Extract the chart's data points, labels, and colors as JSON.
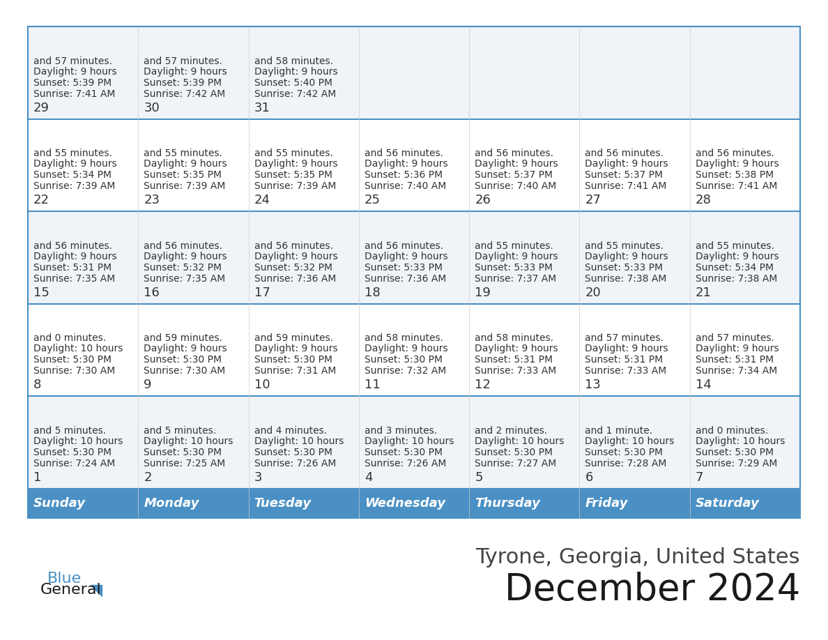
{
  "title": "December 2024",
  "subtitle": "Tyrone, Georgia, United States",
  "header_color": "#4a90c4",
  "header_text_color": "#ffffff",
  "border_color": "#4a90c4",
  "row_bg_even": "#f0f4f8",
  "row_bg_odd": "#ffffff",
  "days_of_week": [
    "Sunday",
    "Monday",
    "Tuesday",
    "Wednesday",
    "Thursday",
    "Friday",
    "Saturday"
  ],
  "weeks": [
    [
      {
        "day": 1,
        "sunrise": "7:24 AM",
        "sunset": "5:30 PM",
        "daylight": "10 hours\nand 5 minutes."
      },
      {
        "day": 2,
        "sunrise": "7:25 AM",
        "sunset": "5:30 PM",
        "daylight": "10 hours\nand 5 minutes."
      },
      {
        "day": 3,
        "sunrise": "7:26 AM",
        "sunset": "5:30 PM",
        "daylight": "10 hours\nand 4 minutes."
      },
      {
        "day": 4,
        "sunrise": "7:26 AM",
        "sunset": "5:30 PM",
        "daylight": "10 hours\nand 3 minutes."
      },
      {
        "day": 5,
        "sunrise": "7:27 AM",
        "sunset": "5:30 PM",
        "daylight": "10 hours\nand 2 minutes."
      },
      {
        "day": 6,
        "sunrise": "7:28 AM",
        "sunset": "5:30 PM",
        "daylight": "10 hours\nand 1 minute."
      },
      {
        "day": 7,
        "sunrise": "7:29 AM",
        "sunset": "5:30 PM",
        "daylight": "10 hours\nand 0 minutes."
      }
    ],
    [
      {
        "day": 8,
        "sunrise": "7:30 AM",
        "sunset": "5:30 PM",
        "daylight": "10 hours\nand 0 minutes."
      },
      {
        "day": 9,
        "sunrise": "7:30 AM",
        "sunset": "5:30 PM",
        "daylight": "9 hours\nand 59 minutes."
      },
      {
        "day": 10,
        "sunrise": "7:31 AM",
        "sunset": "5:30 PM",
        "daylight": "9 hours\nand 59 minutes."
      },
      {
        "day": 11,
        "sunrise": "7:32 AM",
        "sunset": "5:30 PM",
        "daylight": "9 hours\nand 58 minutes."
      },
      {
        "day": 12,
        "sunrise": "7:33 AM",
        "sunset": "5:31 PM",
        "daylight": "9 hours\nand 58 minutes."
      },
      {
        "day": 13,
        "sunrise": "7:33 AM",
        "sunset": "5:31 PM",
        "daylight": "9 hours\nand 57 minutes."
      },
      {
        "day": 14,
        "sunrise": "7:34 AM",
        "sunset": "5:31 PM",
        "daylight": "9 hours\nand 57 minutes."
      }
    ],
    [
      {
        "day": 15,
        "sunrise": "7:35 AM",
        "sunset": "5:31 PM",
        "daylight": "9 hours\nand 56 minutes."
      },
      {
        "day": 16,
        "sunrise": "7:35 AM",
        "sunset": "5:32 PM",
        "daylight": "9 hours\nand 56 minutes."
      },
      {
        "day": 17,
        "sunrise": "7:36 AM",
        "sunset": "5:32 PM",
        "daylight": "9 hours\nand 56 minutes."
      },
      {
        "day": 18,
        "sunrise": "7:36 AM",
        "sunset": "5:33 PM",
        "daylight": "9 hours\nand 56 minutes."
      },
      {
        "day": 19,
        "sunrise": "7:37 AM",
        "sunset": "5:33 PM",
        "daylight": "9 hours\nand 55 minutes."
      },
      {
        "day": 20,
        "sunrise": "7:38 AM",
        "sunset": "5:33 PM",
        "daylight": "9 hours\nand 55 minutes."
      },
      {
        "day": 21,
        "sunrise": "7:38 AM",
        "sunset": "5:34 PM",
        "daylight": "9 hours\nand 55 minutes."
      }
    ],
    [
      {
        "day": 22,
        "sunrise": "7:39 AM",
        "sunset": "5:34 PM",
        "daylight": "9 hours\nand 55 minutes."
      },
      {
        "day": 23,
        "sunrise": "7:39 AM",
        "sunset": "5:35 PM",
        "daylight": "9 hours\nand 55 minutes."
      },
      {
        "day": 24,
        "sunrise": "7:39 AM",
        "sunset": "5:35 PM",
        "daylight": "9 hours\nand 55 minutes."
      },
      {
        "day": 25,
        "sunrise": "7:40 AM",
        "sunset": "5:36 PM",
        "daylight": "9 hours\nand 56 minutes."
      },
      {
        "day": 26,
        "sunrise": "7:40 AM",
        "sunset": "5:37 PM",
        "daylight": "9 hours\nand 56 minutes."
      },
      {
        "day": 27,
        "sunrise": "7:41 AM",
        "sunset": "5:37 PM",
        "daylight": "9 hours\nand 56 minutes."
      },
      {
        "day": 28,
        "sunrise": "7:41 AM",
        "sunset": "5:38 PM",
        "daylight": "9 hours\nand 56 minutes."
      }
    ],
    [
      {
        "day": 29,
        "sunrise": "7:41 AM",
        "sunset": "5:39 PM",
        "daylight": "9 hours\nand 57 minutes."
      },
      {
        "day": 30,
        "sunrise": "7:42 AM",
        "sunset": "5:39 PM",
        "daylight": "9 hours\nand 57 minutes."
      },
      {
        "day": 31,
        "sunrise": "7:42 AM",
        "sunset": "5:40 PM",
        "daylight": "9 hours\nand 58 minutes."
      },
      null,
      null,
      null,
      null
    ]
  ],
  "logo_text_general": "General",
  "logo_text_blue": "Blue",
  "logo_color_general": "#1a1a1a",
  "logo_color_blue": "#4a90c4"
}
